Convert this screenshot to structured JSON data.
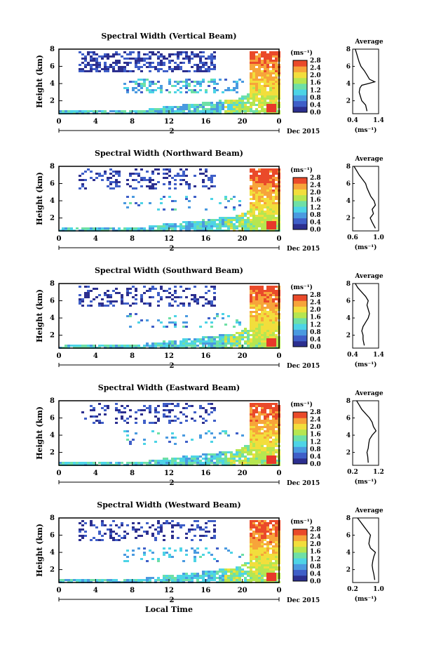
{
  "colorbar_labels": [
    "0.0",
    "0.4",
    "0.8",
    "1.2",
    "1.6",
    "2.0",
    "2.4",
    "2.8"
  ],
  "colorbar_unit": "(ms⁻¹)",
  "x_tick_labels": [
    "0",
    "4",
    "8",
    "12",
    "16",
    "20",
    "0"
  ],
  "date_label": "2",
  "month_label": "Dec 2015",
  "xlabel": "Local Time",
  "ylabel": "Height (km)",
  "y_tick_labels": [
    "2",
    "4",
    "6",
    "8"
  ],
  "avg_title": "Average",
  "avg_unit": "(ms⁻¹)",
  "colors": [
    "#2c2f8f",
    "#3f5fc8",
    "#4a9ae0",
    "#4dd4e6",
    "#6ee0a6",
    "#b6e650",
    "#f2de3c",
    "#f7a43a",
    "#ea4a2a"
  ],
  "chart_data": [
    {
      "type": "heatmap",
      "title": "Spectral Width (Vertical Beam)",
      "xlabel": "",
      "ylabel": "Height (km)",
      "xlim": [
        0,
        24
      ],
      "ylim": [
        0.5,
        8
      ],
      "avg_xticks": [
        "0.4",
        "1.4"
      ],
      "avg_xlim": [
        0.4,
        1.4
      ],
      "avg_profile": {
        "height": [
          0.8,
          1.5,
          2,
          2.5,
          3,
          3.5,
          3.8,
          4,
          4.2,
          4.5,
          5,
          5.5,
          6,
          6.5,
          7,
          7.5,
          8
        ],
        "width": [
          0.95,
          0.9,
          0.75,
          0.7,
          0.65,
          0.68,
          0.75,
          1.0,
          1.25,
          1.05,
          0.95,
          0.85,
          0.72,
          0.65,
          0.6,
          0.55,
          0.5
        ]
      }
    },
    {
      "type": "heatmap",
      "title": "Spectral Width (Northward Beam)",
      "xlabel": "",
      "ylabel": "Height (km)",
      "xlim": [
        0,
        24
      ],
      "ylim": [
        0.5,
        8
      ],
      "avg_xticks": [
        "0.6",
        "1.0"
      ],
      "avg_xlim": [
        0.6,
        1.0
      ],
      "avg_profile": {
        "height": [
          0.8,
          1.5,
          2,
          2.5,
          3,
          3.5,
          4,
          4.5,
          5,
          5.5,
          6,
          6.5,
          7,
          7.5,
          8
        ],
        "width": [
          0.95,
          0.9,
          0.87,
          0.92,
          0.9,
          0.95,
          0.93,
          0.88,
          0.85,
          0.82,
          0.8,
          0.75,
          0.7,
          0.66,
          0.62
        ]
      }
    },
    {
      "type": "heatmap",
      "title": "Spectral Width (Southward Beam)",
      "xlabel": "",
      "ylabel": "Height (km)",
      "xlim": [
        0,
        24
      ],
      "ylim": [
        0.5,
        8
      ],
      "avg_xticks": [
        "0.4",
        "1.4"
      ],
      "avg_xlim": [
        0.4,
        1.4
      ],
      "avg_profile": {
        "height": [
          0.8,
          1.5,
          2,
          2.5,
          3,
          3.5,
          4,
          4.5,
          5,
          5.5,
          6,
          6.5,
          7,
          7.5,
          8
        ],
        "width": [
          0.85,
          0.8,
          0.8,
          0.75,
          0.8,
          0.9,
          1.0,
          1.05,
          1.0,
          0.95,
          1.0,
          0.9,
          0.75,
          0.6,
          0.5
        ]
      }
    },
    {
      "type": "heatmap",
      "title": "Spectral Width (Eastward Beam)",
      "xlabel": "",
      "ylabel": "Height (km)",
      "xlim": [
        0,
        24
      ],
      "ylim": [
        0.5,
        8
      ],
      "avg_xticks": [
        "0.2",
        "1.2"
      ],
      "avg_xlim": [
        0.2,
        1.2
      ],
      "avg_profile": {
        "height": [
          0.8,
          1.5,
          2,
          2.5,
          3,
          3.5,
          4,
          4.5,
          5,
          5.5,
          6,
          6.5,
          7,
          7.5,
          8
        ],
        "width": [
          0.8,
          0.78,
          0.75,
          0.8,
          0.82,
          0.85,
          0.95,
          1.1,
          1.0,
          0.95,
          0.85,
          0.7,
          0.55,
          0.45,
          0.35
        ]
      }
    },
    {
      "type": "heatmap",
      "title": "Spectral Width (Westward Beam)",
      "xlabel": "Local Time",
      "ylabel": "Height (km)",
      "xlim": [
        0,
        24
      ],
      "ylim": [
        0.5,
        8
      ],
      "avg_xticks": [
        "0.2",
        "1.0"
      ],
      "avg_xlim": [
        0.2,
        1.0
      ],
      "avg_profile": {
        "height": [
          0.8,
          1.5,
          2,
          2.5,
          3,
          3.5,
          4,
          4.5,
          5,
          5.5,
          6,
          6.5,
          7,
          7.5,
          8
        ],
        "width": [
          0.88,
          0.85,
          0.82,
          0.8,
          0.82,
          0.85,
          0.9,
          0.75,
          0.7,
          0.72,
          0.75,
          0.65,
          0.55,
          0.45,
          0.35
        ]
      }
    }
  ]
}
